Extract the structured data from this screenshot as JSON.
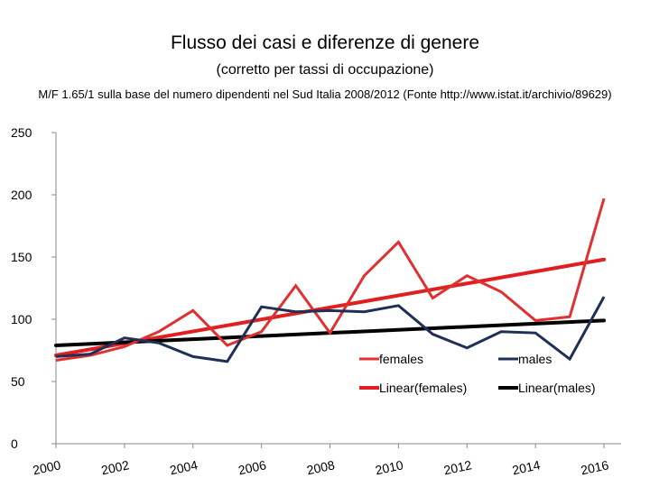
{
  "title": "Flusso dei casi e diferenze di genere",
  "subtitle": "(corretto per tassi di occupazione)",
  "note": "M/F 1.65/1 sulla base del numero dipendenti nel Sud Italia 2008/2012 (Fonte http://www.istat.it/archivio/89629)",
  "chart_data": {
    "type": "line",
    "xlim": [
      2000,
      2016.5
    ],
    "ylim": [
      0,
      250
    ],
    "y_ticks": [
      0,
      50,
      100,
      150,
      200,
      250
    ],
    "x_ticks": [
      2000,
      2002,
      2004,
      2006,
      2008,
      2010,
      2012,
      2014,
      2016
    ],
    "grid": false,
    "legend_position": "bottom-right",
    "x": [
      2000,
      2001,
      2002,
      2003,
      2004,
      2005,
      2006,
      2007,
      2008,
      2009,
      2010,
      2011,
      2012,
      2013,
      2014,
      2015,
      2016
    ],
    "series": [
      {
        "name": "females",
        "color": "#e03030",
        "values": [
          67,
          71,
          78,
          90,
          107,
          79,
          90,
          127,
          89,
          135,
          162,
          117,
          135,
          122,
          99,
          102,
          197
        ]
      },
      {
        "name": "males",
        "color": "#1f2f55",
        "values": [
          70,
          72,
          85,
          81,
          70,
          66,
          110,
          106,
          107,
          106,
          111,
          88,
          77,
          90,
          89,
          68,
          118
        ]
      }
    ],
    "trendlines": [
      {
        "name": "Linear(females)",
        "color": "#e02020",
        "start": [
          2000,
          71
        ],
        "end": [
          2016,
          148
        ]
      },
      {
        "name": "Linear(males)",
        "color": "#000000",
        "start": [
          2000,
          79
        ],
        "end": [
          2016,
          99
        ]
      }
    ]
  }
}
